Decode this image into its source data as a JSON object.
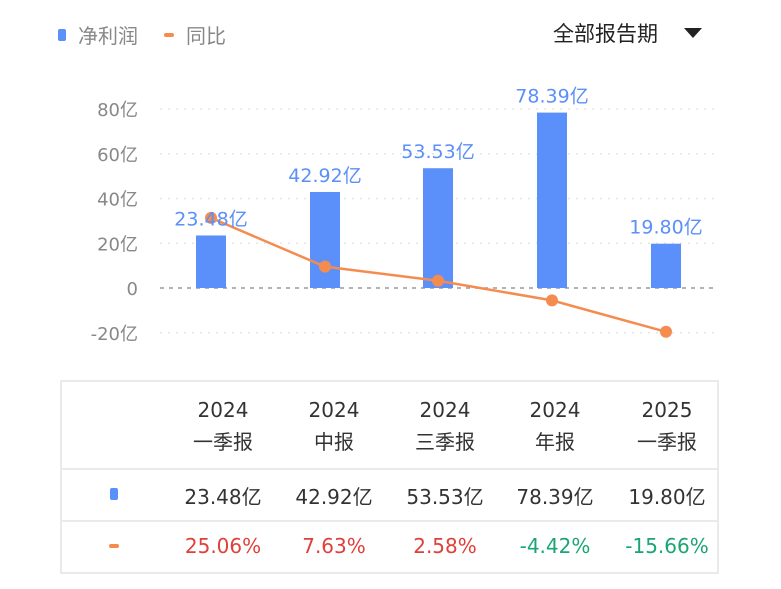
{
  "legend": {
    "bar_label": "净利润",
    "line_label": "同比"
  },
  "period_select": {
    "label": "全部报告期"
  },
  "colors": {
    "bar": "#5b8ff9",
    "line": "#f58c4f",
    "positive": "#e0403a",
    "negative": "#1aa672",
    "axis_text": "#888888"
  },
  "chart_data": {
    "type": "bar+line",
    "categories": [
      "2024 一季报",
      "2024 中报",
      "2024 三季报",
      "2024 年报",
      "2025 一季报"
    ],
    "y_ticks": [
      "80亿",
      "60亿",
      "40亿",
      "20亿",
      "0",
      "-20亿"
    ],
    "y_tick_values": [
      80,
      60,
      40,
      20,
      0,
      -20
    ],
    "ylim": [
      -20,
      80
    ],
    "y2lim": [
      -16,
      64
    ],
    "series": [
      {
        "name": "净利润",
        "type": "bar",
        "values": [
          23.48,
          42.92,
          53.53,
          78.39,
          19.8
        ],
        "labels": [
          "23.48亿",
          "42.92亿",
          "53.53亿",
          "78.39亿",
          "19.80亿"
        ]
      },
      {
        "name": "同比",
        "type": "line",
        "values": [
          25.06,
          7.63,
          2.58,
          -4.42,
          -15.66
        ]
      }
    ]
  },
  "table": {
    "headers": [
      [
        "2024",
        "一季报"
      ],
      [
        "2024",
        "中报"
      ],
      [
        "2024",
        "三季报"
      ],
      [
        "2024",
        "年报"
      ],
      [
        "2025",
        "一季报"
      ]
    ],
    "profit": [
      "23.48亿",
      "42.92亿",
      "53.53亿",
      "78.39亿",
      "19.80亿"
    ],
    "yoy": [
      "25.06%",
      "7.63%",
      "2.58%",
      "-4.42%",
      "-15.66%"
    ]
  }
}
